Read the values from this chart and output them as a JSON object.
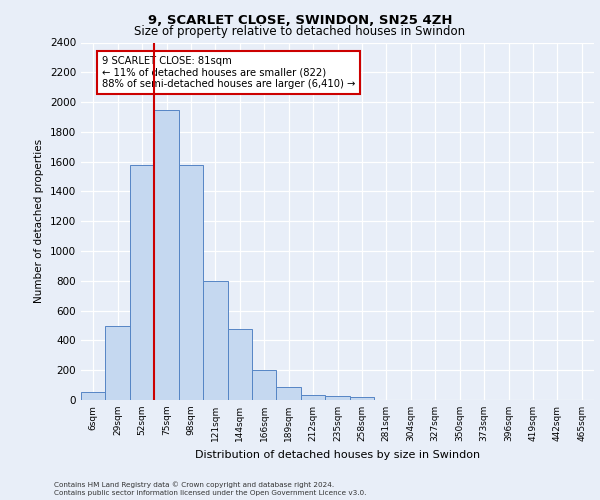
{
  "title1": "9, SCARLET CLOSE, SWINDON, SN25 4ZH",
  "title2": "Size of property relative to detached houses in Swindon",
  "xlabel": "Distribution of detached houses by size in Swindon",
  "ylabel": "Number of detached properties",
  "bar_labels": [
    "6sqm",
    "29sqm",
    "52sqm",
    "75sqm",
    "98sqm",
    "121sqm",
    "144sqm",
    "166sqm",
    "189sqm",
    "212sqm",
    "235sqm",
    "258sqm",
    "281sqm",
    "304sqm",
    "327sqm",
    "350sqm",
    "373sqm",
    "396sqm",
    "419sqm",
    "442sqm",
    "465sqm"
  ],
  "bar_values": [
    55,
    500,
    1580,
    1950,
    1580,
    800,
    480,
    200,
    90,
    35,
    30,
    20,
    0,
    0,
    0,
    0,
    0,
    0,
    0,
    0,
    0
  ],
  "bar_color": "#c5d8f0",
  "bar_edge_color": "#5585c5",
  "vline_position": 2.5,
  "vline_color": "#cc0000",
  "annotation_text": "9 SCARLET CLOSE: 81sqm\n← 11% of detached houses are smaller (822)\n88% of semi-detached houses are larger (6,410) →",
  "annotation_box_color": "#ffffff",
  "annotation_box_edge_color": "#cc0000",
  "ylim": [
    0,
    2400
  ],
  "yticks": [
    0,
    200,
    400,
    600,
    800,
    1000,
    1200,
    1400,
    1600,
    1800,
    2000,
    2200,
    2400
  ],
  "footer1": "Contains HM Land Registry data © Crown copyright and database right 2024.",
  "footer2": "Contains public sector information licensed under the Open Government Licence v3.0.",
  "bg_color": "#e8eef8",
  "plot_bg_color": "#e8eef8",
  "grid_color": "#ffffff",
  "spine_color": "#cccccc"
}
